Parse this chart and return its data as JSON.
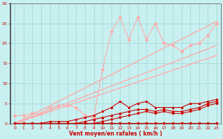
{
  "background_color": "#c8f0f0",
  "grid_color": "#a8d8d8",
  "xlabel": "Vent moyen/en rafales ( km/h )",
  "xlabel_color": "#cc0000",
  "tick_color": "#cc0000",
  "xlim": [
    -0.5,
    23.5
  ],
  "ylim": [
    0,
    30
  ],
  "yticks": [
    0,
    5,
    10,
    15,
    20,
    25,
    30
  ],
  "xticks": [
    0,
    1,
    2,
    3,
    4,
    5,
    6,
    7,
    8,
    9,
    10,
    11,
    12,
    13,
    14,
    15,
    16,
    17,
    18,
    19,
    20,
    21,
    22,
    23
  ],
  "trend1_x": [
    0,
    23
  ],
  "trend1_y": [
    0,
    25.5
  ],
  "trend1_color": "#ffaaaa",
  "trend1_lw": 1.0,
  "trend2_x": [
    0,
    23
  ],
  "trend2_y": [
    0,
    19.5
  ],
  "trend2_color": "#ffaaaa",
  "trend2_lw": 1.0,
  "trend3_x": [
    0,
    23
  ],
  "trend3_y": [
    0,
    17.0
  ],
  "trend3_color": "#ffaaaa",
  "trend3_lw": 1.0,
  "pink_jagged_x": [
    0,
    1,
    2,
    3,
    4,
    5,
    6,
    7,
    8,
    9,
    10,
    11,
    12,
    13,
    14,
    15,
    16,
    17,
    18,
    19,
    20,
    21,
    22,
    23
  ],
  "pink_jagged_y": [
    2.0,
    2.0,
    2.5,
    2.5,
    4.0,
    4.5,
    4.5,
    4.0,
    2.0,
    1.5,
    13.5,
    23.0,
    26.5,
    21.0,
    26.5,
    21.0,
    25.0,
    20.0,
    19.5,
    18.0,
    19.5,
    20.0,
    22.0,
    25.0
  ],
  "pink_jagged_color": "#ffaaaa",
  "pink_jagged_lw": 0.8,
  "pink_jagged_ms": 2.0,
  "red_flat_x": [
    0,
    1,
    2,
    3,
    4,
    5,
    6,
    7,
    8,
    9,
    10,
    11,
    12,
    13,
    14,
    15,
    16,
    17,
    18,
    19,
    20,
    21,
    22,
    23
  ],
  "red_flat_y": [
    0.2,
    0.2,
    0.2,
    0.2,
    0.2,
    0.2,
    0.2,
    0.2,
    0.2,
    0.2,
    0.2,
    0.2,
    0.2,
    0.2,
    0.2,
    0.2,
    0.2,
    0.2,
    0.2,
    0.2,
    0.2,
    0.2,
    0.2,
    0.2
  ],
  "red_flat_color": "#cc0000",
  "red_flat_lw": 0.8,
  "red_flat_ms": 1.5,
  "red_low_x": [
    0,
    1,
    2,
    3,
    4,
    5,
    6,
    7,
    8,
    9,
    10,
    11,
    12,
    13,
    14,
    15,
    16,
    17,
    18,
    19,
    20,
    21,
    22,
    23
  ],
  "red_low_y": [
    0.0,
    0.0,
    0.0,
    0.0,
    0.0,
    0.0,
    0.0,
    0.0,
    0.5,
    1.0,
    1.5,
    2.0,
    2.5,
    3.0,
    3.5,
    3.5,
    3.0,
    3.5,
    3.0,
    3.0,
    3.5,
    4.0,
    5.0,
    5.5
  ],
  "red_low_color": "#cc0000",
  "red_low_lw": 0.8,
  "red_low_ms": 2.0,
  "red_mid_x": [
    0,
    1,
    2,
    3,
    4,
    5,
    6,
    7,
    8,
    9,
    10,
    11,
    12,
    13,
    14,
    15,
    16,
    17,
    18,
    19,
    20,
    21,
    22,
    23
  ],
  "red_mid_y": [
    0.0,
    0.0,
    0.0,
    0.0,
    0.5,
    0.5,
    0.5,
    1.0,
    1.5,
    2.0,
    3.0,
    4.0,
    5.5,
    4.0,
    5.0,
    5.5,
    4.0,
    4.0,
    4.0,
    4.0,
    5.0,
    5.0,
    5.5,
    6.0
  ],
  "red_mid_color": "#cc0000",
  "red_mid_lw": 0.8,
  "red_mid_ms": 2.0,
  "red_zero2_x": [
    0,
    1,
    2,
    3,
    4,
    5,
    6,
    7,
    8,
    9,
    10,
    11,
    12,
    13,
    14,
    15,
    16,
    17,
    18,
    19,
    20,
    21,
    22,
    23
  ],
  "red_zero2_y": [
    0.0,
    0.0,
    0.0,
    0.0,
    0.0,
    0.0,
    0.0,
    0.0,
    0.0,
    0.0,
    0.5,
    1.0,
    1.5,
    2.0,
    2.5,
    3.0,
    2.5,
    3.0,
    2.5,
    2.5,
    3.0,
    3.5,
    4.5,
    5.0
  ],
  "red_zero2_color": "#cc0000",
  "red_zero2_lw": 0.8,
  "red_zero2_ms": 2.0
}
